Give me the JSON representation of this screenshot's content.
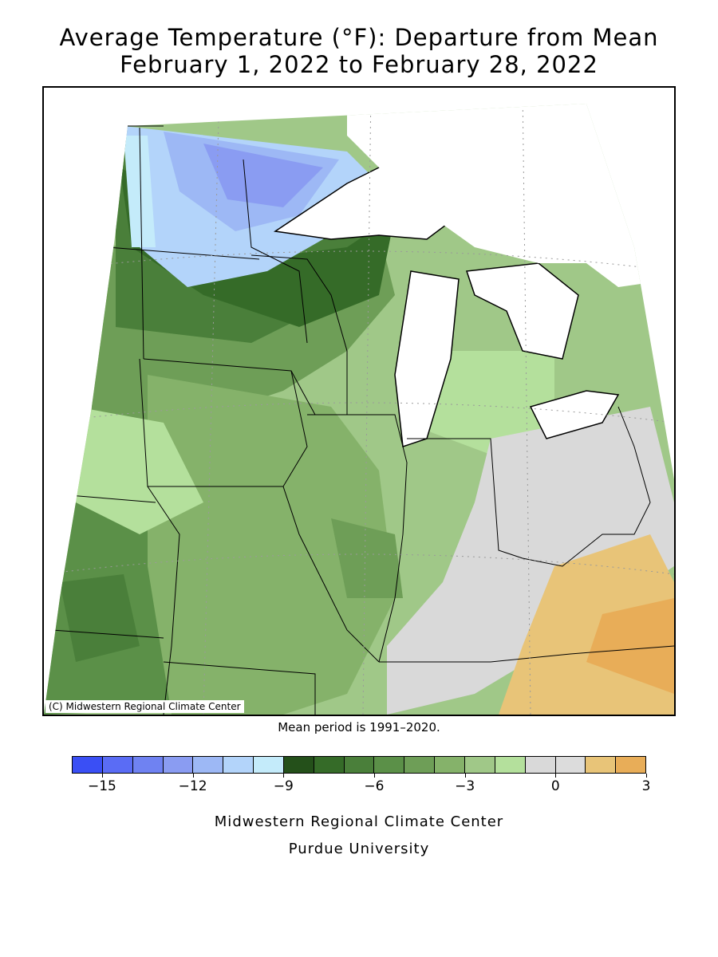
{
  "title_line1": "Average Temperature (°F): Departure from Mean",
  "title_line2": "February 1, 2022 to February 28, 2022",
  "copyright": "(C) Midwestern Regional Climate Center",
  "mean_period": "Mean period is 1991–2020.",
  "footer_line1": "Midwestern Regional Climate Center",
  "footer_line2": "Purdue University",
  "legend": {
    "colors": [
      "#3a4ff5",
      "#5a6cf5",
      "#6f82f2",
      "#8a9cf2",
      "#9db8f5",
      "#b3d4fa",
      "#c4ebfa",
      "#24501a",
      "#356b28",
      "#4a7f3a",
      "#5b9048",
      "#6e9e57",
      "#85b26a",
      "#a0c888",
      "#b4e09c",
      "#d9d9d9",
      "#dcdcdc",
      "#e8c478",
      "#e8ad58"
    ],
    "tick_labels": [
      "−15",
      "−12",
      "−9",
      "−6",
      "−3",
      "0",
      "3"
    ],
    "tick_values": [
      -15,
      -12,
      -9,
      -6,
      -3,
      0,
      3
    ],
    "min": -16,
    "max": 3
  },
  "colors": {
    "lake": "#ffffff",
    "border": "#000000"
  }
}
